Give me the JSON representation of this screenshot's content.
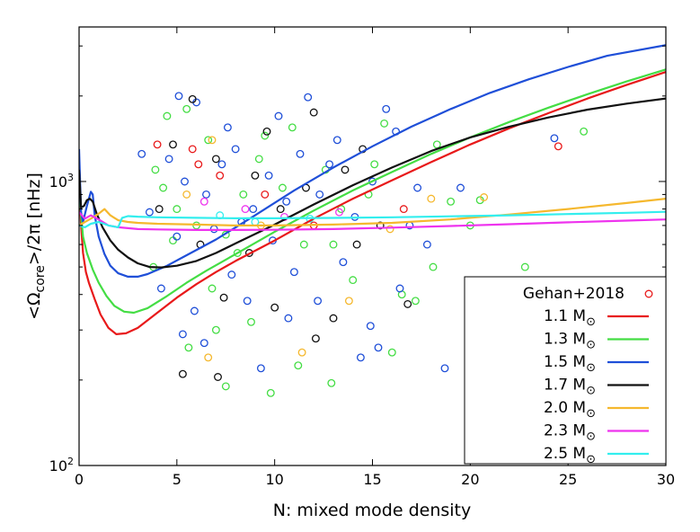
{
  "chart_data": {
    "type": "scatter",
    "xlabel": "N: mixed mode density",
    "ylabel_main": "<Ω",
    "ylabel_sub": "core",
    "ylabel_tail": ">/2π [nHz]",
    "xlim": [
      0,
      30
    ],
    "ylim": [
      100,
      3500
    ],
    "y_scale": "log",
    "x_ticks": [
      0,
      5,
      10,
      15,
      20,
      25,
      30
    ],
    "y_ticks": [
      {
        "value": 100,
        "base": "10",
        "exp": "2"
      },
      {
        "value": 1000,
        "base": "10",
        "exp": "3"
      }
    ],
    "legend_position": "bottom-right",
    "observations": {
      "name": "Gehan+2018",
      "marker": "open-circle",
      "colors_by_mass": {
        "1.1": "#e8191a",
        "1.3": "#44dd44",
        "1.5": "#1f4fd8",
        "1.7": "#111111",
        "2.0": "#f5b82e",
        "2.3": "#ee33ee",
        "2.5": "#33eeee"
      },
      "points": [
        {
          "x": 4.0,
          "y": 1350,
          "c": "#e8191a"
        },
        {
          "x": 5.8,
          "y": 1300,
          "c": "#e8191a"
        },
        {
          "x": 7.2,
          "y": 1050,
          "c": "#e8191a"
        },
        {
          "x": 9.5,
          "y": 900,
          "c": "#e8191a"
        },
        {
          "x": 16.6,
          "y": 800,
          "c": "#e8191a"
        },
        {
          "x": 24.5,
          "y": 1330,
          "c": "#e8191a"
        },
        {
          "x": 6.1,
          "y": 1150,
          "c": "#e8191a"
        },
        {
          "x": 12.0,
          "y": 700,
          "c": "#e8191a"
        },
        {
          "x": 4.5,
          "y": 1700,
          "c": "#44dd44"
        },
        {
          "x": 5.5,
          "y": 1800,
          "c": "#44dd44"
        },
        {
          "x": 6.6,
          "y": 1400,
          "c": "#44dd44"
        },
        {
          "x": 3.9,
          "y": 1100,
          "c": "#44dd44"
        },
        {
          "x": 4.3,
          "y": 950,
          "c": "#44dd44"
        },
        {
          "x": 5.0,
          "y": 800,
          "c": "#44dd44"
        },
        {
          "x": 6.0,
          "y": 700,
          "c": "#44dd44"
        },
        {
          "x": 7.5,
          "y": 650,
          "c": "#44dd44"
        },
        {
          "x": 8.4,
          "y": 900,
          "c": "#44dd44"
        },
        {
          "x": 9.2,
          "y": 1200,
          "c": "#44dd44"
        },
        {
          "x": 10.4,
          "y": 950,
          "c": "#44dd44"
        },
        {
          "x": 11.5,
          "y": 600,
          "c": "#44dd44"
        },
        {
          "x": 12.6,
          "y": 1100,
          "c": "#44dd44"
        },
        {
          "x": 13.4,
          "y": 800,
          "c": "#44dd44"
        },
        {
          "x": 14.8,
          "y": 900,
          "c": "#44dd44"
        },
        {
          "x": 15.6,
          "y": 1600,
          "c": "#44dd44"
        },
        {
          "x": 16.5,
          "y": 400,
          "c": "#44dd44"
        },
        {
          "x": 18.3,
          "y": 1350,
          "c": "#44dd44"
        },
        {
          "x": 19.0,
          "y": 850,
          "c": "#44dd44"
        },
        {
          "x": 20.0,
          "y": 700,
          "c": "#44dd44"
        },
        {
          "x": 22.8,
          "y": 500,
          "c": "#44dd44"
        },
        {
          "x": 25.8,
          "y": 1500,
          "c": "#44dd44"
        },
        {
          "x": 7.5,
          "y": 190,
          "c": "#44dd44"
        },
        {
          "x": 9.8,
          "y": 180,
          "c": "#44dd44"
        },
        {
          "x": 11.2,
          "y": 225,
          "c": "#44dd44"
        },
        {
          "x": 12.9,
          "y": 195,
          "c": "#44dd44"
        },
        {
          "x": 8.8,
          "y": 320,
          "c": "#44dd44"
        },
        {
          "x": 5.6,
          "y": 260,
          "c": "#44dd44"
        },
        {
          "x": 6.8,
          "y": 420,
          "c": "#44dd44"
        },
        {
          "x": 14.0,
          "y": 450,
          "c": "#44dd44"
        },
        {
          "x": 17.2,
          "y": 380,
          "c": "#44dd44"
        },
        {
          "x": 4.8,
          "y": 620,
          "c": "#44dd44"
        },
        {
          "x": 10.9,
          "y": 1550,
          "c": "#44dd44"
        },
        {
          "x": 15.1,
          "y": 1150,
          "c": "#44dd44"
        },
        {
          "x": 20.5,
          "y": 860,
          "c": "#44dd44"
        },
        {
          "x": 3.8,
          "y": 500,
          "c": "#44dd44"
        },
        {
          "x": 8.1,
          "y": 560,
          "c": "#44dd44"
        },
        {
          "x": 13.0,
          "y": 600,
          "c": "#44dd44"
        },
        {
          "x": 18.1,
          "y": 500,
          "c": "#44dd44"
        },
        {
          "x": 16.0,
          "y": 250,
          "c": "#44dd44"
        },
        {
          "x": 7.0,
          "y": 300,
          "c": "#44dd44"
        },
        {
          "x": 9.5,
          "y": 1450,
          "c": "#44dd44"
        },
        {
          "x": 5.1,
          "y": 2000,
          "c": "#1f4fd8"
        },
        {
          "x": 6.0,
          "y": 1900,
          "c": "#1f4fd8"
        },
        {
          "x": 11.7,
          "y": 1980,
          "c": "#1f4fd8"
        },
        {
          "x": 15.7,
          "y": 1800,
          "c": "#1f4fd8"
        },
        {
          "x": 3.2,
          "y": 1250,
          "c": "#1f4fd8"
        },
        {
          "x": 4.6,
          "y": 1200,
          "c": "#1f4fd8"
        },
        {
          "x": 5.4,
          "y": 1000,
          "c": "#1f4fd8"
        },
        {
          "x": 6.5,
          "y": 900,
          "c": "#1f4fd8"
        },
        {
          "x": 7.3,
          "y": 1150,
          "c": "#1f4fd8"
        },
        {
          "x": 8.0,
          "y": 1300,
          "c": "#1f4fd8"
        },
        {
          "x": 8.9,
          "y": 800,
          "c": "#1f4fd8"
        },
        {
          "x": 9.7,
          "y": 1050,
          "c": "#1f4fd8"
        },
        {
          "x": 10.6,
          "y": 850,
          "c": "#1f4fd8"
        },
        {
          "x": 11.3,
          "y": 1250,
          "c": "#1f4fd8"
        },
        {
          "x": 12.3,
          "y": 900,
          "c": "#1f4fd8"
        },
        {
          "x": 13.2,
          "y": 1400,
          "c": "#1f4fd8"
        },
        {
          "x": 14.1,
          "y": 750,
          "c": "#1f4fd8"
        },
        {
          "x": 15.0,
          "y": 1000,
          "c": "#1f4fd8"
        },
        {
          "x": 16.2,
          "y": 1500,
          "c": "#1f4fd8"
        },
        {
          "x": 17.3,
          "y": 950,
          "c": "#1f4fd8"
        },
        {
          "x": 19.5,
          "y": 950,
          "c": "#1f4fd8"
        },
        {
          "x": 24.3,
          "y": 1420,
          "c": "#1f4fd8"
        },
        {
          "x": 5.3,
          "y": 290,
          "c": "#1f4fd8"
        },
        {
          "x": 5.9,
          "y": 350,
          "c": "#1f4fd8"
        },
        {
          "x": 6.4,
          "y": 270,
          "c": "#1f4fd8"
        },
        {
          "x": 8.6,
          "y": 380,
          "c": "#1f4fd8"
        },
        {
          "x": 9.3,
          "y": 220,
          "c": "#1f4fd8"
        },
        {
          "x": 10.7,
          "y": 330,
          "c": "#1f4fd8"
        },
        {
          "x": 12.2,
          "y": 380,
          "c": "#1f4fd8"
        },
        {
          "x": 14.4,
          "y": 240,
          "c": "#1f4fd8"
        },
        {
          "x": 15.3,
          "y": 260,
          "c": "#1f4fd8"
        },
        {
          "x": 16.4,
          "y": 420,
          "c": "#1f4fd8"
        },
        {
          "x": 18.7,
          "y": 220,
          "c": "#1f4fd8"
        },
        {
          "x": 14.9,
          "y": 310,
          "c": "#1f4fd8"
        },
        {
          "x": 4.2,
          "y": 420,
          "c": "#1f4fd8"
        },
        {
          "x": 7.8,
          "y": 470,
          "c": "#1f4fd8"
        },
        {
          "x": 11.0,
          "y": 480,
          "c": "#1f4fd8"
        },
        {
          "x": 13.5,
          "y": 520,
          "c": "#1f4fd8"
        },
        {
          "x": 17.8,
          "y": 600,
          "c": "#1f4fd8"
        },
        {
          "x": 9.9,
          "y": 620,
          "c": "#1f4fd8"
        },
        {
          "x": 6.9,
          "y": 680,
          "c": "#1f4fd8"
        },
        {
          "x": 3.6,
          "y": 780,
          "c": "#1f4fd8"
        },
        {
          "x": 12.8,
          "y": 1150,
          "c": "#1f4fd8"
        },
        {
          "x": 10.2,
          "y": 1700,
          "c": "#1f4fd8"
        },
        {
          "x": 7.6,
          "y": 1550,
          "c": "#1f4fd8"
        },
        {
          "x": 5.0,
          "y": 640,
          "c": "#1f4fd8"
        },
        {
          "x": 8.3,
          "y": 720,
          "c": "#1f4fd8"
        },
        {
          "x": 16.9,
          "y": 700,
          "c": "#1f4fd8"
        },
        {
          "x": 5.8,
          "y": 1950,
          "c": "#111111"
        },
        {
          "x": 12.0,
          "y": 1750,
          "c": "#111111"
        },
        {
          "x": 4.8,
          "y": 1350,
          "c": "#111111"
        },
        {
          "x": 7.0,
          "y": 1200,
          "c": "#111111"
        },
        {
          "x": 9.0,
          "y": 1050,
          "c": "#111111"
        },
        {
          "x": 10.3,
          "y": 800,
          "c": "#111111"
        },
        {
          "x": 11.6,
          "y": 950,
          "c": "#111111"
        },
        {
          "x": 13.6,
          "y": 1100,
          "c": "#111111"
        },
        {
          "x": 14.5,
          "y": 1300,
          "c": "#111111"
        },
        {
          "x": 15.4,
          "y": 700,
          "c": "#111111"
        },
        {
          "x": 5.3,
          "y": 210,
          "c": "#111111"
        },
        {
          "x": 7.1,
          "y": 205,
          "c": "#111111"
        },
        {
          "x": 12.1,
          "y": 280,
          "c": "#111111"
        },
        {
          "x": 13.0,
          "y": 330,
          "c": "#111111"
        },
        {
          "x": 16.8,
          "y": 370,
          "c": "#111111"
        },
        {
          "x": 7.4,
          "y": 390,
          "c": "#111111"
        },
        {
          "x": 10.0,
          "y": 360,
          "c": "#111111"
        },
        {
          "x": 6.2,
          "y": 600,
          "c": "#111111"
        },
        {
          "x": 8.7,
          "y": 560,
          "c": "#111111"
        },
        {
          "x": 14.2,
          "y": 600,
          "c": "#111111"
        },
        {
          "x": 4.1,
          "y": 800,
          "c": "#111111"
        },
        {
          "x": 9.6,
          "y": 1500,
          "c": "#111111"
        },
        {
          "x": 5.5,
          "y": 900,
          "c": "#f5b82e"
        },
        {
          "x": 6.6,
          "y": 240,
          "c": "#f5b82e"
        },
        {
          "x": 11.4,
          "y": 250,
          "c": "#f5b82e"
        },
        {
          "x": 13.8,
          "y": 380,
          "c": "#f5b82e"
        },
        {
          "x": 18.0,
          "y": 870,
          "c": "#f5b82e"
        },
        {
          "x": 20.7,
          "y": 880,
          "c": "#f5b82e"
        },
        {
          "x": 6.8,
          "y": 1400,
          "c": "#f5b82e"
        },
        {
          "x": 9.3,
          "y": 700,
          "c": "#f5b82e"
        },
        {
          "x": 15.9,
          "y": 680,
          "c": "#f5b82e"
        },
        {
          "x": 6.4,
          "y": 850,
          "c": "#ee33ee"
        },
        {
          "x": 8.5,
          "y": 800,
          "c": "#ee33ee"
        },
        {
          "x": 10.5,
          "y": 750,
          "c": "#ee33ee"
        },
        {
          "x": 13.3,
          "y": 780,
          "c": "#ee33ee"
        },
        {
          "x": 9.0,
          "y": 720,
          "c": "#33eeee"
        },
        {
          "x": 7.2,
          "y": 760,
          "c": "#33eeee"
        },
        {
          "x": 11.8,
          "y": 740,
          "c": "#33eeee"
        }
      ]
    },
    "series": [
      {
        "name": "1.1 M",
        "mass": "1.1",
        "color": "#e8191a",
        "x": [
          0,
          0.1,
          0.2,
          0.35,
          0.5,
          0.8,
          1.1,
          1.5,
          1.9,
          2.4,
          3.0,
          4,
          5,
          6,
          7,
          8,
          10,
          12,
          14,
          16,
          18,
          20,
          22,
          24,
          26,
          28,
          30
        ],
        "y": [
          1000,
          700,
          560,
          480,
          440,
          385,
          340,
          305,
          290,
          292,
          305,
          345,
          390,
          435,
          480,
          525,
          620,
          740,
          870,
          1010,
          1170,
          1350,
          1540,
          1740,
          1960,
          2190,
          2430
        ]
      },
      {
        "name": "1.3 M",
        "mass": "1.3",
        "color": "#44dd44",
        "x": [
          0,
          0.1,
          0.2,
          0.4,
          0.7,
          1.0,
          1.4,
          1.8,
          2.3,
          2.8,
          3.5,
          4.5,
          5.5,
          6.5,
          8,
          10,
          12,
          14,
          16,
          18,
          20,
          22,
          24,
          26,
          28,
          30
        ],
        "y": [
          1050,
          760,
          640,
          560,
          490,
          440,
          395,
          365,
          348,
          345,
          358,
          395,
          440,
          485,
          555,
          665,
          790,
          930,
          1080,
          1250,
          1430,
          1620,
          1820,
          2030,
          2250,
          2480
        ]
      },
      {
        "name": "1.5 M",
        "mass": "1.5",
        "color": "#1f4fd8",
        "x": [
          0,
          0.1,
          0.2,
          0.4,
          0.6,
          0.7,
          0.8,
          1.0,
          1.3,
          1.6,
          2.0,
          2.5,
          3.0,
          3.5,
          4.5,
          5.5,
          7,
          9,
          11,
          13,
          15,
          17,
          19,
          21,
          23,
          25,
          27,
          30
        ],
        "y": [
          1300,
          780,
          720,
          820,
          920,
          900,
          760,
          640,
          555,
          505,
          475,
          462,
          462,
          472,
          505,
          550,
          625,
          760,
          930,
          1120,
          1330,
          1560,
          1800,
          2050,
          2290,
          2530,
          2770,
          3020
        ]
      },
      {
        "name": "1.7 M",
        "mass": "1.7",
        "color": "#111111",
        "x": [
          0,
          0.1,
          0.25,
          0.4,
          0.55,
          0.7,
          0.9,
          1.2,
          1.6,
          2.0,
          2.5,
          3.0,
          3.6,
          4.2,
          5.0,
          6,
          7,
          8,
          10,
          12,
          14,
          16,
          18,
          20,
          22,
          24,
          26,
          28,
          30
        ],
        "y": [
          1100,
          810,
          820,
          860,
          870,
          850,
          770,
          690,
          620,
          575,
          540,
          515,
          500,
          498,
          505,
          525,
          560,
          605,
          705,
          830,
          970,
          1120,
          1280,
          1430,
          1560,
          1680,
          1790,
          1880,
          1960
        ]
      },
      {
        "name": "2.0 M",
        "mass": "2.0",
        "color": "#f5b82e",
        "x": [
          0,
          0.3,
          0.6,
          1.0,
          1.3,
          1.6,
          2.0,
          2.5,
          3,
          4,
          6,
          8,
          10,
          13,
          16,
          19,
          22,
          25,
          28,
          30
        ],
        "y": [
          700,
          720,
          740,
          770,
          800,
          760,
          730,
          720,
          715,
          710,
          705,
          700,
          700,
          705,
          715,
          735,
          765,
          800,
          840,
          870
        ]
      },
      {
        "name": "2.3 M",
        "mass": "2.3",
        "color": "#ee33ee",
        "x": [
          0,
          0.3,
          0.6,
          1.0,
          1.5,
          2,
          3,
          4,
          6,
          8,
          10,
          13,
          16,
          19,
          22,
          25,
          28,
          30
        ],
        "y": [
          780,
          740,
          760,
          735,
          700,
          690,
          680,
          678,
          675,
          675,
          676,
          680,
          688,
          697,
          707,
          718,
          728,
          735
        ]
      },
      {
        "name": "2.5 M",
        "mass": "2.5",
        "color": "#33eeee",
        "x": [
          0,
          0.3,
          0.6,
          1.0,
          1.5,
          2.0,
          2.2,
          2.5,
          3,
          4,
          6,
          8,
          10,
          13,
          16,
          19,
          22,
          25,
          28,
          30
        ],
        "y": [
          700,
          690,
          710,
          720,
          700,
          690,
          745,
          755,
          752,
          748,
          745,
          742,
          742,
          744,
          748,
          754,
          760,
          768,
          776,
          782
        ]
      }
    ],
    "legend": {
      "title": "Gehan+2018",
      "unit_sub": "⊙"
    }
  }
}
